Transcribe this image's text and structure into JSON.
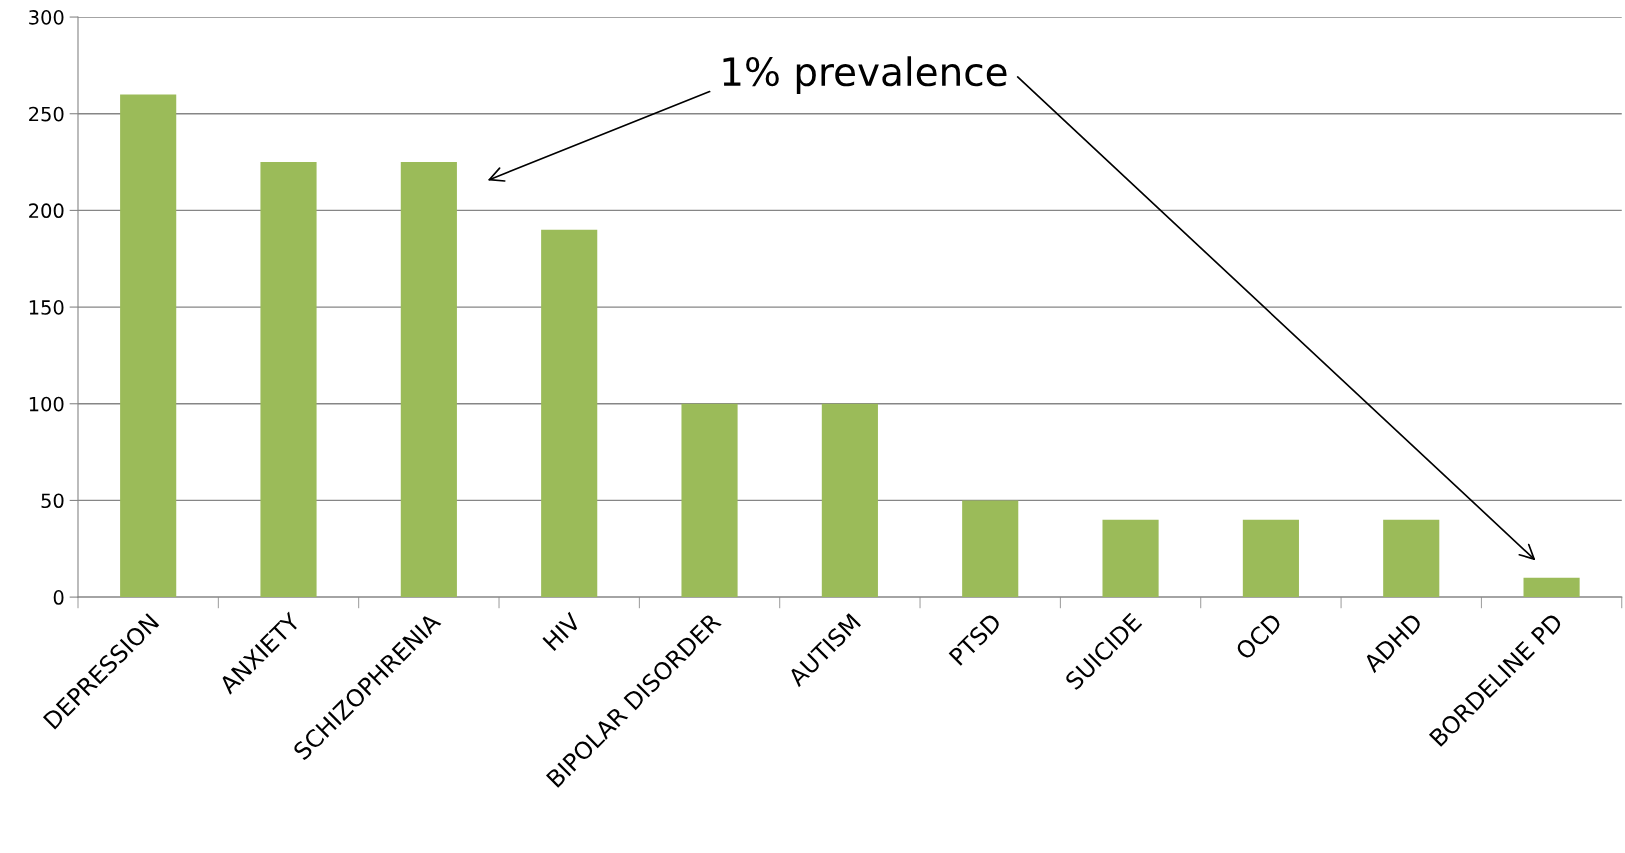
{
  "chart_data": {
    "type": "bar",
    "categories": [
      "DEPRESSION",
      "ANXIETY",
      "SCHIZOPHRENIA",
      "HIV",
      "BIPOLAR DISORDER",
      "AUTISM",
      "PTSD",
      "SUICIDE",
      "OCD",
      "ADHD",
      "BORDELINE PD"
    ],
    "values": [
      260,
      225,
      225,
      190,
      100,
      100,
      50,
      40,
      40,
      40,
      10
    ],
    "color": "#9bbb59",
    "ylim": [
      0,
      300
    ],
    "yticks": [
      0,
      50,
      100,
      150,
      200,
      250,
      300
    ],
    "grid": "y",
    "legend": false,
    "annotations": [
      "1% prevalence"
    ]
  }
}
